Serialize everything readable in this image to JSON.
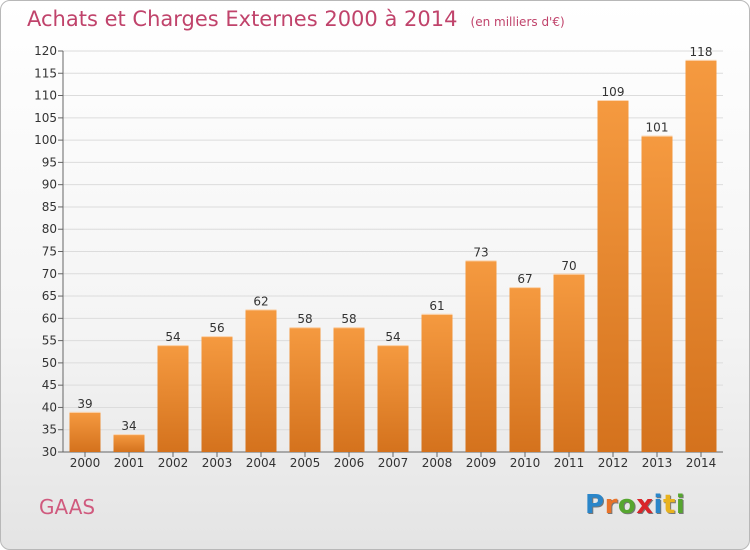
{
  "title": "Achats et Charges Externes 2000 à 2014",
  "unit_note": "(en milliers d'€)",
  "commune": "GAAS",
  "logo": {
    "text": "Proxiti",
    "letters": [
      {
        "char": "P",
        "color": "#2b86c9"
      },
      {
        "char": "r",
        "color": "#e8732a"
      },
      {
        "char": "o",
        "color": "#56a62f"
      },
      {
        "char": "x",
        "color": "#d9262a"
      },
      {
        "char": "i",
        "color": "#2b86c9"
      },
      {
        "char": "t",
        "color": "#e8b21f"
      },
      {
        "char": "i",
        "color": "#56a62f"
      }
    ]
  },
  "chart_data": {
    "type": "bar",
    "title": "Achats et Charges Externes 2000 à 2014",
    "categories": [
      "2000",
      "2001",
      "2002",
      "2003",
      "2004",
      "2005",
      "2006",
      "2007",
      "2008",
      "2009",
      "2010",
      "2011",
      "2012",
      "2013",
      "2014"
    ],
    "values": [
      39,
      34,
      54,
      56,
      62,
      58,
      58,
      54,
      61,
      73,
      67,
      70,
      109,
      101,
      118
    ],
    "ylim": [
      30,
      120
    ],
    "ytick_step": 5,
    "grid": true,
    "data_labels": true,
    "bar_color": "#f59a40",
    "bar_color_dark": "#d4721d",
    "xlabel": "",
    "ylabel": ""
  }
}
